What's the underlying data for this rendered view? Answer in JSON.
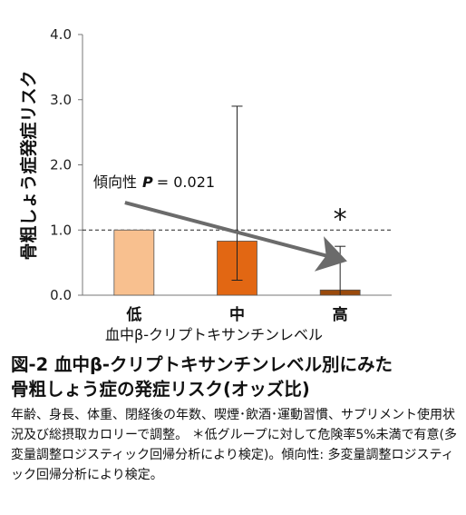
{
  "chart_data": {
    "type": "bar",
    "ylabel": "骨粗しょう症発症リスク",
    "xlabel": "血中β-クリプトキサンチンレベル",
    "categories": [
      "低",
      "中",
      "高"
    ],
    "values": [
      1.0,
      0.83,
      0.08
    ],
    "error_upper": [
      1.0,
      2.9,
      0.75
    ],
    "error_lower": [
      1.0,
      0.23,
      0.0
    ],
    "bar_colors": [
      "#f8c08f",
      "#e26713",
      "#9a4a0c"
    ],
    "ylim": [
      0.0,
      4.0
    ],
    "yticks": [
      "0.0",
      "1.0",
      "2.0",
      "3.0",
      "4.0"
    ],
    "reference_line": 1.0,
    "trend_annotation": {
      "label": "傾向性",
      "p_symbol": "P",
      "p_value": "= 0.021"
    },
    "significance_marker": "*",
    "significance_category": "高",
    "arrow_color": "#6b6b6b"
  },
  "caption": {
    "title_line1": "図-2 血中β-クリプトキサンチンレベル別にみた",
    "title_line2": "骨粗しょう症の発症リスク(オッズ比)",
    "note": "年齢、身長、体重、閉経後の年数、喫煙･飲酒･運動習慣、サプリメント使用状況及び総摂取カロリーで調整。 ＊低グループに対して危険率5%未満で有意(多変量調整ロジスティック回帰分析により検定)。傾向性: 多変量調整ロジスティック回帰分析により検定。"
  }
}
